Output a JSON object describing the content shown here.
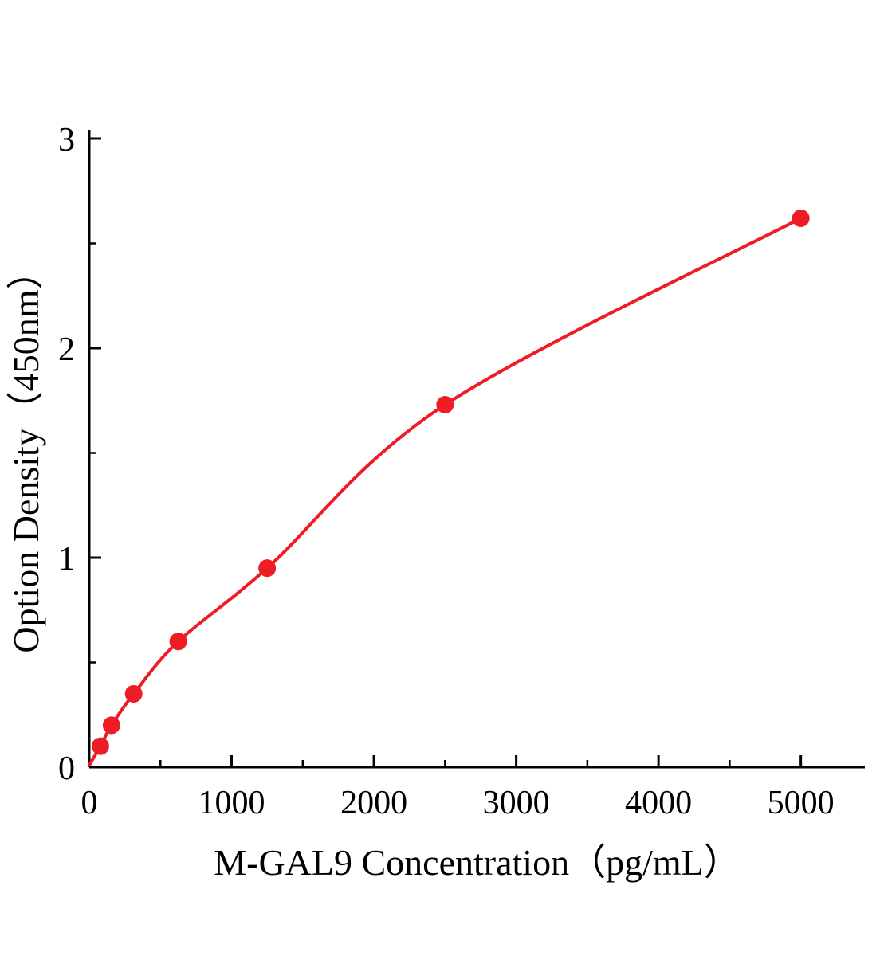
{
  "chart_data": {
    "type": "scatter",
    "title": "",
    "xlabel": "M-GAL9 Concentration（pg/mL）",
    "ylabel": "Option Density（450nm）",
    "x": [
      78,
      156,
      312,
      625,
      1250,
      2500,
      5000
    ],
    "y": [
      0.1,
      0.2,
      0.35,
      0.6,
      0.95,
      1.73,
      2.62
    ],
    "curve_start": {
      "x": 0,
      "y": 0.01
    },
    "xlim": [
      0,
      5450
    ],
    "ylim": [
      0,
      3
    ],
    "x_ticks": [
      0,
      1000,
      2000,
      3000,
      4000,
      5000
    ],
    "y_ticks": [
      0,
      1,
      2,
      3
    ],
    "x_minor_ticks": [
      500,
      1500,
      2500,
      3500,
      4500
    ],
    "y_minor_ticks": [
      0.5,
      1.5,
      2.5
    ],
    "grid": false,
    "legend": null,
    "line_color": "#ee1c25",
    "marker_color": "#ee1c25",
    "marker_radius": 11,
    "axis_color": "#000000"
  }
}
